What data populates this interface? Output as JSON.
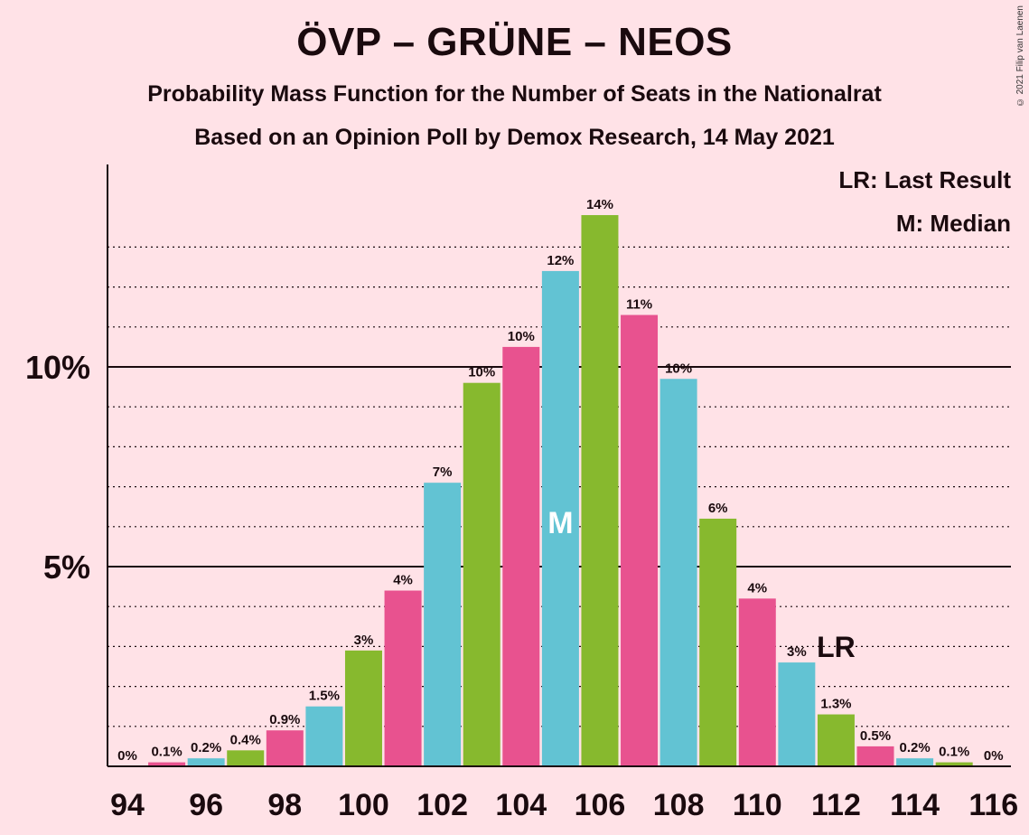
{
  "title": "ÖVP – GRÜNE – NEOS",
  "subtitle": "Probability Mass Function for the Number of Seats in the Nationalrat",
  "subtitle2": "Based on an Opinion Poll by Demox Research, 14 May 2021",
  "copyright": "© 2021 Filip van Laenen",
  "legend": {
    "last_result": "LR: Last Result",
    "median": "M: Median"
  },
  "markers": {
    "median_label": "M",
    "median_seat": 105,
    "last_result_label": "LR",
    "last_result_seat": 112
  },
  "colors": {
    "pink": "#E8528F",
    "cyan": "#62C3D3",
    "green": "#87B92E",
    "background": "#FFE2E7",
    "median_text": "#FFFFFF"
  },
  "chart_data": {
    "type": "bar",
    "x": [
      94,
      95,
      96,
      97,
      98,
      99,
      100,
      101,
      102,
      103,
      104,
      105,
      106,
      107,
      108,
      109,
      110,
      111,
      112,
      113,
      114,
      115,
      116
    ],
    "values": [
      0,
      0.1,
      0.2,
      0.4,
      0.9,
      1.5,
      2.9,
      4.4,
      7.1,
      9.6,
      10.5,
      12.4,
      13.8,
      11.3,
      9.7,
      6.2,
      4.2,
      2.6,
      1.3,
      0.5,
      0.2,
      0.1,
      0
    ],
    "data_labels": [
      "0%",
      "0.1%",
      "0.2%",
      "0.4%",
      "0.9%",
      "1.5%",
      "3%",
      "4%",
      "7%",
      "10%",
      "10%",
      "12%",
      "14%",
      "11%",
      "10%",
      "6%",
      "4%",
      "3%",
      "1.3%",
      "0.5%",
      "0.2%",
      "0.1%",
      "0%"
    ],
    "bar_colors": [
      "pink",
      "pink",
      "cyan",
      "green",
      "pink",
      "cyan",
      "green",
      "pink",
      "cyan",
      "green",
      "pink",
      "cyan",
      "green",
      "pink",
      "cyan",
      "green",
      "pink",
      "cyan",
      "green",
      "pink",
      "cyan",
      "green",
      "pink"
    ],
    "x_tick_labels": [
      "94",
      "96",
      "98",
      "100",
      "102",
      "104",
      "106",
      "108",
      "110",
      "112",
      "114",
      "116"
    ],
    "y_ticks": [
      5,
      10
    ],
    "y_tick_labels": [
      "5%",
      "10%"
    ],
    "y_minor_step": 1,
    "ylim": [
      0,
      15
    ],
    "grid": true
  }
}
